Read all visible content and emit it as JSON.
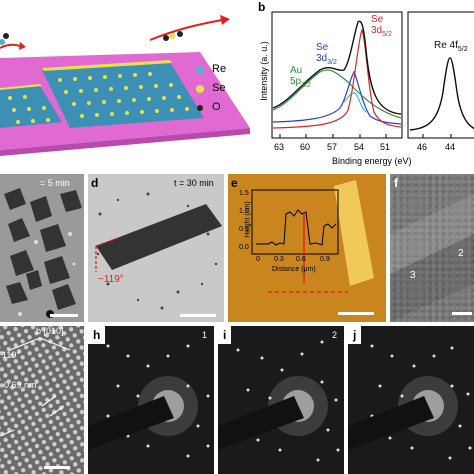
{
  "panel_a": {
    "legend": [
      {
        "label": "Re",
        "color": "#4cb3c9"
      },
      {
        "label": "Se",
        "color": "#e8e04a"
      },
      {
        "label": "O",
        "color": "#222222"
      }
    ]
  },
  "panel_b": {
    "label": "b",
    "ylabel": "Intensity (a. u.)",
    "xlabel": "Binding energy (eV)",
    "left_ticks": [
      "63",
      "60",
      "57",
      "54",
      "51"
    ],
    "right_ticks": [
      "46",
      "44"
    ],
    "annotations": {
      "au": "Au",
      "au_sub": "5p",
      "au_sub2": "3/2",
      "se1": "Se",
      "se1_sub": "3d",
      "se1_sub2": "3/2",
      "se2": "Se",
      "se2_sub": "3d",
      "se2_sub2": "5/2",
      "re": "Re 4f",
      "re_sub": "5/2"
    }
  },
  "panel_c": {
    "time_label": "= 5 min"
  },
  "panel_d": {
    "label": "d",
    "time_label": "t = 30 min",
    "angle": "~119°"
  },
  "panel_e": {
    "label": "e",
    "ylabel": "Height (nm)",
    "xlabel": "Distance (μm)",
    "yticks": [
      "1.5",
      "1.0",
      "0.5",
      "0.0"
    ],
    "xticks": [
      "0",
      "0.3",
      "0.6",
      "0.9"
    ]
  },
  "panel_f": {
    "label": "f",
    "regions": [
      "2",
      "3"
    ]
  },
  "panel_g": {
    "direction": "b [010]",
    "angle": "119°",
    "spacing": "0.69 nm"
  },
  "panel_h": {
    "label": "h",
    "index": "1"
  },
  "panel_i": {
    "label": "i",
    "index": "2"
  },
  "panel_j": {
    "label": "j"
  },
  "colors": {
    "substrate": "#e06ad2",
    "xps_black": "#111111",
    "xps_red": "#d9262a",
    "xps_blue": "#2a3fd6",
    "xps_green": "#2f8f3a",
    "xps_cyan": "#19b3c9",
    "afm_bg": "#c9861f",
    "red_marker": "#e02020"
  }
}
